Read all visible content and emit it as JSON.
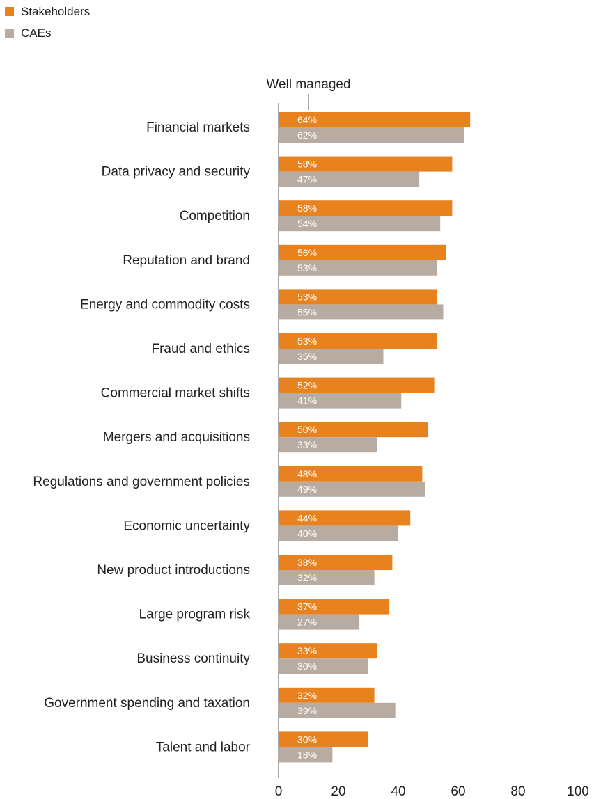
{
  "chart_data": {
    "type": "bar",
    "orientation": "horizontal",
    "title": "",
    "xlabel": "",
    "ylabel": "",
    "xlim": [
      0,
      100
    ],
    "xticks": [
      0,
      20,
      40,
      60,
      80,
      100
    ],
    "grid": false,
    "legend_position": "top-left",
    "annotation": "Well managed",
    "annotation_x": 10,
    "categories": [
      "Financial markets",
      "Data privacy and security",
      "Competition",
      "Reputation and brand",
      "Energy and commodity costs",
      "Fraud and ethics",
      "Commercial market shifts",
      "Mergers and acquisitions",
      "Regulations and government policies",
      "Economic uncertainty",
      "New product introductions",
      "Large program risk",
      "Business continuity",
      "Government spending and taxation",
      "Talent and labor"
    ],
    "series": [
      {
        "name": "Stakeholders",
        "color": "#e8821e",
        "values": [
          64,
          58,
          58,
          56,
          53,
          53,
          52,
          50,
          48,
          44,
          38,
          37,
          33,
          32,
          30
        ]
      },
      {
        "name": "CAEs",
        "color": "#b8aca2",
        "values": [
          62,
          47,
          54,
          53,
          55,
          35,
          41,
          33,
          49,
          40,
          32,
          27,
          30,
          39,
          18
        ]
      }
    ]
  }
}
